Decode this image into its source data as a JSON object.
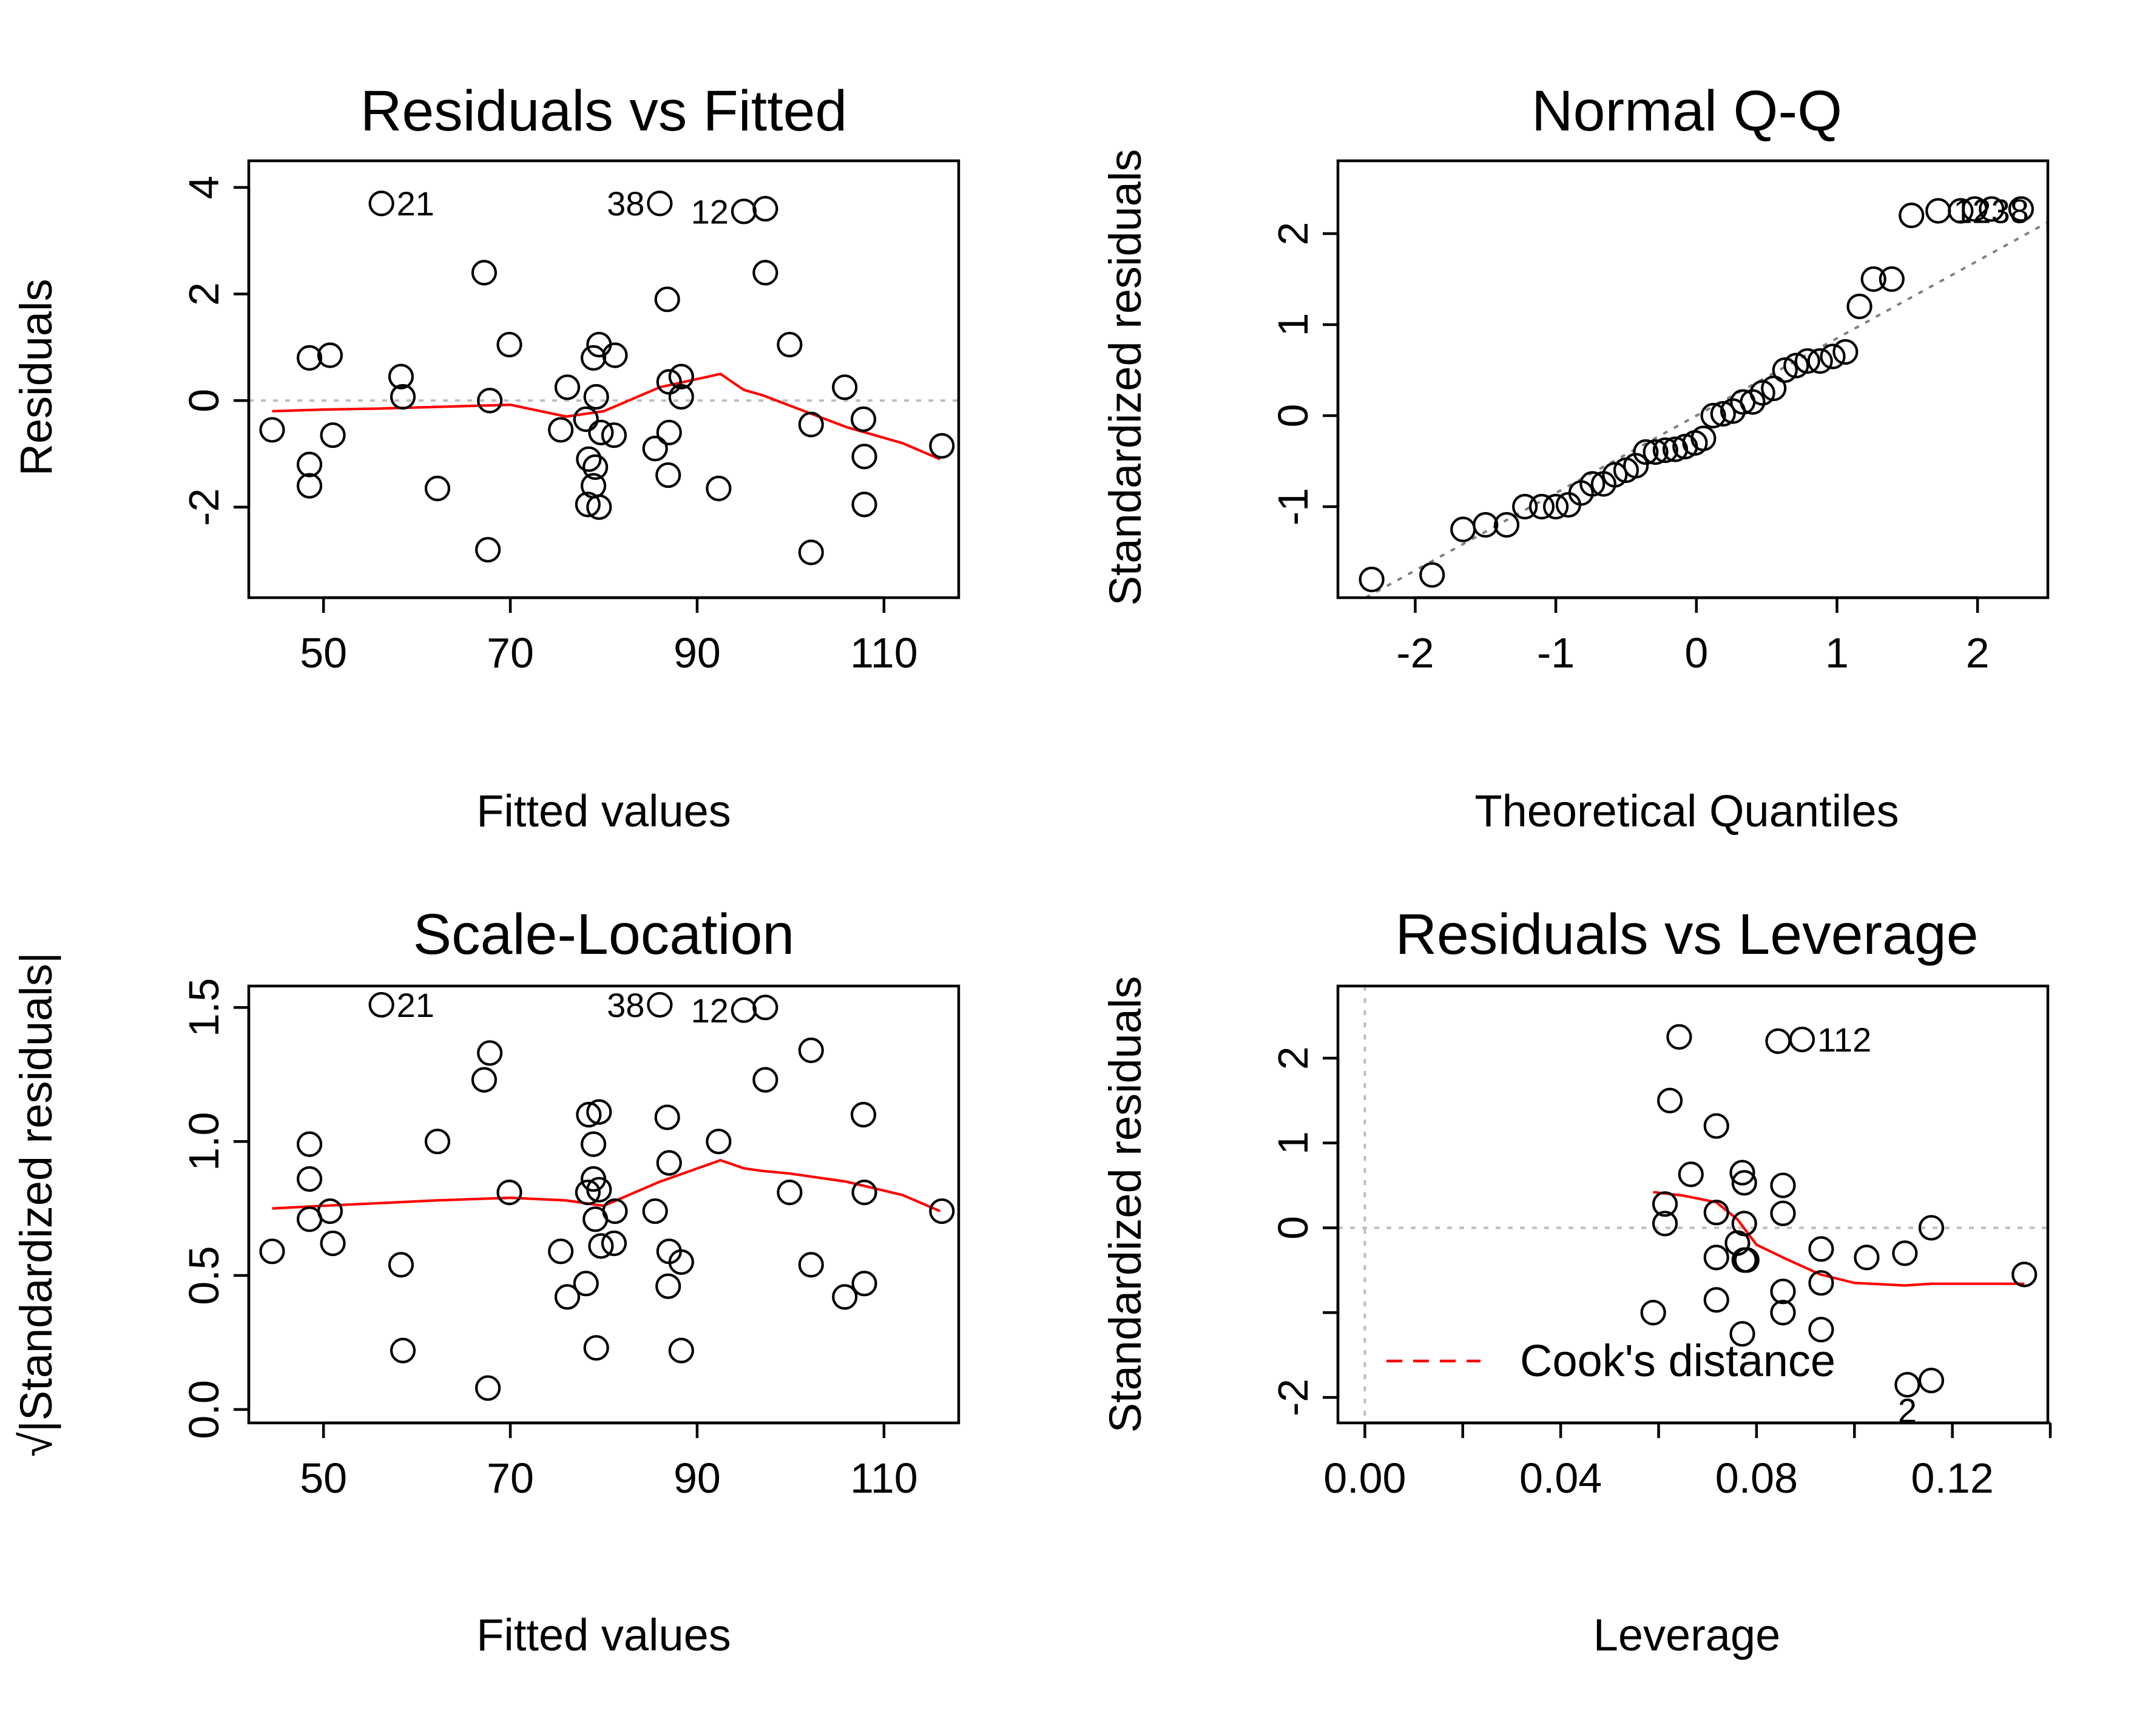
{
  "chart_data": [
    {
      "id": "rvf",
      "type": "scatter",
      "title": "Residuals vs Fitted",
      "xlabel": "Fitted values",
      "ylabel": "Residuals",
      "xticks": [
        "50",
        "70",
        "90",
        "110"
      ],
      "xtick_values": [
        50,
        70,
        90,
        110
      ],
      "yticks": [
        "-2",
        "0",
        "2",
        "4"
      ],
      "ytick_values": [
        -2,
        0,
        2,
        4
      ],
      "xlim": [
        42,
        118
      ],
      "ylim": [
        -3.7,
        4.5
      ],
      "reference_line_y": 0,
      "points": [
        {
          "x": 44.5,
          "y": -0.55
        },
        {
          "x": 48.5,
          "y": 0.8
        },
        {
          "x": 48.5,
          "y": -1.2
        },
        {
          "x": 48.5,
          "y": -1.6
        },
        {
          "x": 50.7,
          "y": 0.85
        },
        {
          "x": 51.0,
          "y": -0.65
        },
        {
          "x": 56.2,
          "y": 3.7
        },
        {
          "x": 58.3,
          "y": 0.45
        },
        {
          "x": 58.5,
          "y": 0.07
        },
        {
          "x": 62.2,
          "y": -1.65
        },
        {
          "x": 67.2,
          "y": 2.4
        },
        {
          "x": 67.8,
          "y": 0.0
        },
        {
          "x": 67.6,
          "y": -2.8
        },
        {
          "x": 69.9,
          "y": 1.05
        },
        {
          "x": 75.4,
          "y": -0.55
        },
        {
          "x": 76.1,
          "y": 0.25
        },
        {
          "x": 78.1,
          "y": -0.35
        },
        {
          "x": 78.4,
          "y": -1.1
        },
        {
          "x": 78.3,
          "y": -1.95
        },
        {
          "x": 78.9,
          "y": 0.8
        },
        {
          "x": 78.9,
          "y": -1.6
        },
        {
          "x": 79.1,
          "y": -1.25
        },
        {
          "x": 79.5,
          "y": 1.05
        },
        {
          "x": 79.5,
          "y": -2.0
        },
        {
          "x": 79.2,
          "y": 0.07
        },
        {
          "x": 79.7,
          "y": -0.6
        },
        {
          "x": 81.2,
          "y": 0.85
        },
        {
          "x": 81.1,
          "y": -0.65
        },
        {
          "x": 85.5,
          "y": -0.9
        },
        {
          "x": 86.0,
          "y": 3.7
        },
        {
          "x": 86.8,
          "y": 1.9
        },
        {
          "x": 87.0,
          "y": 0.35
        },
        {
          "x": 87.0,
          "y": -0.6
        },
        {
          "x": 86.9,
          "y": -1.4
        },
        {
          "x": 88.3,
          "y": 0.45
        },
        {
          "x": 88.3,
          "y": 0.07
        },
        {
          "x": 92.3,
          "y": -1.65
        },
        {
          "x": 95.0,
          "y": 3.55
        },
        {
          "x": 97.3,
          "y": 3.6
        },
        {
          "x": 97.3,
          "y": 2.4
        },
        {
          "x": 99.9,
          "y": 1.05
        },
        {
          "x": 102.2,
          "y": -0.45
        },
        {
          "x": 102.2,
          "y": -2.85
        },
        {
          "x": 105.8,
          "y": 0.25
        },
        {
          "x": 107.8,
          "y": -0.35
        },
        {
          "x": 107.9,
          "y": -1.05
        },
        {
          "x": 107.9,
          "y": -1.95
        },
        {
          "x": 116.2,
          "y": -0.85
        }
      ],
      "labels": [
        {
          "text": "21",
          "x": 56.2,
          "y": 3.7,
          "side": "right"
        },
        {
          "text": "38",
          "x": 86.0,
          "y": 3.7,
          "side": "left"
        },
        {
          "text": "12",
          "x": 95.0,
          "y": 3.55,
          "side": "left"
        }
      ],
      "smooth": [
        [
          44.5,
          -0.2
        ],
        [
          50,
          -0.17
        ],
        [
          56,
          -0.15
        ],
        [
          62,
          -0.12
        ],
        [
          70,
          -0.08
        ],
        [
          76,
          -0.3
        ],
        [
          80,
          -0.2
        ],
        [
          86,
          0.25
        ],
        [
          92.5,
          0.5
        ],
        [
          95,
          0.2
        ],
        [
          97,
          0.1
        ],
        [
          100,
          -0.1
        ],
        [
          106,
          -0.5
        ],
        [
          112,
          -0.8
        ],
        [
          116,
          -1.1
        ]
      ]
    },
    {
      "id": "qq",
      "type": "scatter",
      "title": "Normal Q-Q",
      "xlabel": "Theoretical Quantiles",
      "ylabel": "Standardized residuals",
      "xticks": [
        "-2",
        "-1",
        "0",
        "1",
        "2"
      ],
      "xtick_values": [
        -2,
        -1,
        0,
        1,
        2
      ],
      "yticks": [
        "-1",
        "0",
        "1",
        "2"
      ],
      "ytick_values": [
        -1,
        0,
        1,
        2
      ],
      "xlim": [
        -2.55,
        2.5
      ],
      "ylim": [
        -2.0,
        2.8
      ],
      "qq_line": {
        "intercept": 0.0,
        "slope": 0.85
      },
      "points": [
        {
          "x": -2.31,
          "y": -1.8
        },
        {
          "x": -1.88,
          "y": -1.75
        },
        {
          "x": -1.66,
          "y": -1.25
        },
        {
          "x": -1.5,
          "y": -1.2
        },
        {
          "x": -1.35,
          "y": -1.2
        },
        {
          "x": -1.22,
          "y": -1.0
        },
        {
          "x": -1.1,
          "y": -1.0
        },
        {
          "x": -1.0,
          "y": -1.0
        },
        {
          "x": -0.91,
          "y": -0.98
        },
        {
          "x": -0.82,
          "y": -0.85
        },
        {
          "x": -0.74,
          "y": -0.75
        },
        {
          "x": -0.66,
          "y": -0.75
        },
        {
          "x": -0.58,
          "y": -0.65
        },
        {
          "x": -0.5,
          "y": -0.6
        },
        {
          "x": -0.43,
          "y": -0.55
        },
        {
          "x": -0.36,
          "y": -0.4
        },
        {
          "x": -0.29,
          "y": -0.4
        },
        {
          "x": -0.22,
          "y": -0.38
        },
        {
          "x": -0.15,
          "y": -0.37
        },
        {
          "x": -0.08,
          "y": -0.34
        },
        {
          "x": -0.01,
          "y": -0.3
        },
        {
          "x": 0.05,
          "y": -0.25
        },
        {
          "x": 0.12,
          "y": 0.0
        },
        {
          "x": 0.19,
          "y": 0.02
        },
        {
          "x": 0.26,
          "y": 0.05
        },
        {
          "x": 0.33,
          "y": 0.15
        },
        {
          "x": 0.4,
          "y": 0.15
        },
        {
          "x": 0.47,
          "y": 0.25
        },
        {
          "x": 0.55,
          "y": 0.3
        },
        {
          "x": 0.63,
          "y": 0.5
        },
        {
          "x": 0.71,
          "y": 0.55
        },
        {
          "x": 0.79,
          "y": 0.6
        },
        {
          "x": 0.88,
          "y": 0.6
        },
        {
          "x": 0.97,
          "y": 0.65
        },
        {
          "x": 1.06,
          "y": 0.7
        },
        {
          "x": 1.16,
          "y": 1.2
        },
        {
          "x": 1.26,
          "y": 1.5
        },
        {
          "x": 1.39,
          "y": 1.5
        },
        {
          "x": 1.53,
          "y": 2.2
        },
        {
          "x": 1.72,
          "y": 2.25
        },
        {
          "x": 1.88,
          "y": 2.25
        },
        {
          "x": 1.98,
          "y": 2.27
        },
        {
          "x": 2.1,
          "y": 2.27
        },
        {
          "x": 2.31,
          "y": 2.27
        }
      ],
      "labels": [
        {
          "text": "1238",
          "x": 1.72,
          "y": 2.25,
          "side": "right"
        }
      ]
    },
    {
      "id": "sl",
      "type": "scatter",
      "title": "Scale-Location",
      "xlabel": "Fitted values",
      "ylabel": "√|Standardized residuals|",
      "xticks": [
        "50",
        "70",
        "90",
        "110"
      ],
      "xtick_values": [
        50,
        70,
        90,
        110
      ],
      "yticks": [
        "0.0",
        "0.5",
        "1.0",
        "1.5"
      ],
      "ytick_values": [
        0.0,
        0.5,
        1.0,
        1.5
      ],
      "xlim": [
        42,
        118
      ],
      "ylim": [
        -0.05,
        1.58
      ],
      "points": [
        {
          "x": 44.5,
          "y": 0.59
        },
        {
          "x": 48.5,
          "y": 0.99
        },
        {
          "x": 48.5,
          "y": 0.86
        },
        {
          "x": 48.5,
          "y": 0.71
        },
        {
          "x": 50.7,
          "y": 0.74
        },
        {
          "x": 51.0,
          "y": 0.62
        },
        {
          "x": 56.2,
          "y": 1.51
        },
        {
          "x": 58.3,
          "y": 0.54
        },
        {
          "x": 58.5,
          "y": 0.22
        },
        {
          "x": 62.2,
          "y": 1.0
        },
        {
          "x": 67.2,
          "y": 1.23
        },
        {
          "x": 67.8,
          "y": 1.33
        },
        {
          "x": 67.6,
          "y": 0.08
        },
        {
          "x": 69.9,
          "y": 0.81
        },
        {
          "x": 75.4,
          "y": 0.59
        },
        {
          "x": 76.1,
          "y": 0.42
        },
        {
          "x": 78.1,
          "y": 0.47
        },
        {
          "x": 78.4,
          "y": 1.1
        },
        {
          "x": 78.3,
          "y": 0.81
        },
        {
          "x": 78.9,
          "y": 0.99
        },
        {
          "x": 78.9,
          "y": 0.86
        },
        {
          "x": 79.1,
          "y": 0.71
        },
        {
          "x": 79.5,
          "y": 1.11
        },
        {
          "x": 79.5,
          "y": 0.82
        },
        {
          "x": 79.2,
          "y": 0.23
        },
        {
          "x": 79.7,
          "y": 0.61
        },
        {
          "x": 81.2,
          "y": 0.74
        },
        {
          "x": 81.1,
          "y": 0.62
        },
        {
          "x": 85.5,
          "y": 0.74
        },
        {
          "x": 86.0,
          "y": 1.51
        },
        {
          "x": 86.8,
          "y": 1.09
        },
        {
          "x": 87.0,
          "y": 0.92
        },
        {
          "x": 87.0,
          "y": 0.59
        },
        {
          "x": 86.9,
          "y": 0.46
        },
        {
          "x": 88.3,
          "y": 0.55
        },
        {
          "x": 88.3,
          "y": 0.22
        },
        {
          "x": 92.3,
          "y": 1.0
        },
        {
          "x": 95.0,
          "y": 1.49
        },
        {
          "x": 97.3,
          "y": 1.5
        },
        {
          "x": 97.3,
          "y": 1.23
        },
        {
          "x": 99.9,
          "y": 0.81
        },
        {
          "x": 102.2,
          "y": 1.34
        },
        {
          "x": 102.2,
          "y": 0.54
        },
        {
          "x": 105.8,
          "y": 0.42
        },
        {
          "x": 107.8,
          "y": 1.1
        },
        {
          "x": 107.9,
          "y": 0.81
        },
        {
          "x": 107.9,
          "y": 0.47
        },
        {
          "x": 116.2,
          "y": 0.74
        }
      ],
      "labels": [
        {
          "text": "21",
          "x": 56.2,
          "y": 1.51,
          "side": "right"
        },
        {
          "text": "38",
          "x": 86.0,
          "y": 1.51,
          "side": "left"
        },
        {
          "text": "12",
          "x": 95.0,
          "y": 1.49,
          "side": "left"
        }
      ],
      "smooth": [
        [
          44.5,
          0.75
        ],
        [
          50,
          0.76
        ],
        [
          56,
          0.77
        ],
        [
          62,
          0.78
        ],
        [
          70,
          0.79
        ],
        [
          76,
          0.78
        ],
        [
          80,
          0.76
        ],
        [
          86,
          0.85
        ],
        [
          92.5,
          0.93
        ],
        [
          95,
          0.9
        ],
        [
          97,
          0.89
        ],
        [
          100,
          0.88
        ],
        [
          106,
          0.85
        ],
        [
          112,
          0.8
        ],
        [
          116,
          0.74
        ]
      ]
    },
    {
      "id": "rvl",
      "type": "scatter",
      "title": "Residuals vs Leverage",
      "xlabel": "Leverage",
      "ylabel": "Standardized residuals",
      "xticks": [
        "0.00",
        "0.04",
        "0.08",
        "0.12"
      ],
      "xtick_values": [
        0.0,
        0.04,
        0.08,
        0.12
      ],
      "minor_xtick_values": [
        0.02,
        0.06,
        0.1,
        0.14
      ],
      "yticks": [
        "-2",
        "0",
        "1",
        "2"
      ],
      "ytick_values": [
        -2,
        -1,
        0,
        1,
        2
      ],
      "ytick_labels_map": {
        "-2": "-2",
        "-1": "",
        "0": "0",
        "1": "1",
        "2": "2"
      },
      "xlim": [
        -0.0055,
        0.1395
      ],
      "ylim": [
        -2.3,
        2.85
      ],
      "reference_line_y": 0,
      "reference_line_x": 0,
      "legend": {
        "label": "Cook's distance",
        "position": "bottom-left"
      },
      "points": [
        {
          "x": 0.0589,
          "y": -1.0
        },
        {
          "x": 0.0613,
          "y": 0.28
        },
        {
          "x": 0.0613,
          "y": 0.05
        },
        {
          "x": 0.0623,
          "y": 1.5
        },
        {
          "x": 0.0642,
          "y": 2.25
        },
        {
          "x": 0.0666,
          "y": 0.63
        },
        {
          "x": 0.0718,
          "y": 1.2
        },
        {
          "x": 0.0718,
          "y": 0.18
        },
        {
          "x": 0.0718,
          "y": -0.35
        },
        {
          "x": 0.0718,
          "y": -0.85
        },
        {
          "x": 0.0761,
          "y": -0.18
        },
        {
          "x": 0.0771,
          "y": 0.65
        },
        {
          "x": 0.0775,
          "y": 0.53
        },
        {
          "x": 0.0775,
          "y": 0.05
        },
        {
          "x": 0.0775,
          "y": -0.38
        },
        {
          "x": 0.078,
          "y": -0.38
        },
        {
          "x": 0.0771,
          "y": -1.25
        },
        {
          "x": 0.0844,
          "y": 2.2
        },
        {
          "x": 0.0854,
          "y": 0.5
        },
        {
          "x": 0.0854,
          "y": 0.17
        },
        {
          "x": 0.0854,
          "y": -0.75
        },
        {
          "x": 0.0854,
          "y": -1.0
        },
        {
          "x": 0.0893,
          "y": 2.22
        },
        {
          "x": 0.0932,
          "y": -0.25
        },
        {
          "x": 0.0932,
          "y": -0.65
        },
        {
          "x": 0.0932,
          "y": -1.2
        },
        {
          "x": 0.1025,
          "y": -0.35
        },
        {
          "x": 0.1103,
          "y": -0.3
        },
        {
          "x": 0.1108,
          "y": -1.85
        },
        {
          "x": 0.1157,
          "y": 0.0
        },
        {
          "x": 0.1157,
          "y": -1.8
        },
        {
          "x": 0.1347,
          "y": -0.55
        }
      ],
      "labels": [
        {
          "text": "112",
          "x": 0.0893,
          "y": 2.22,
          "side": "right"
        },
        {
          "text": "2",
          "x": 0.1108,
          "y": -1.85,
          "side": "below"
        }
      ],
      "smooth": [
        [
          0.0589,
          0.42
        ],
        [
          0.065,
          0.38
        ],
        [
          0.0718,
          0.3
        ],
        [
          0.0761,
          0.1
        ],
        [
          0.08,
          -0.2
        ],
        [
          0.0854,
          -0.35
        ],
        [
          0.093,
          -0.55
        ],
        [
          0.1,
          -0.65
        ],
        [
          0.1103,
          -0.68
        ],
        [
          0.1157,
          -0.66
        ],
        [
          0.125,
          -0.66
        ],
        [
          0.1347,
          -0.66
        ]
      ]
    }
  ]
}
